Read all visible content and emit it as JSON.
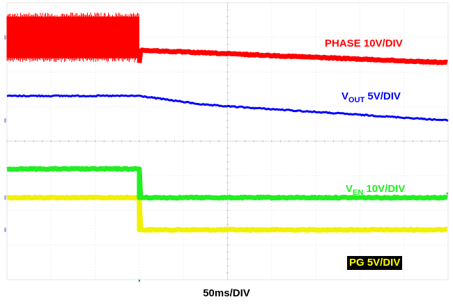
{
  "chart_data": {
    "type": "line",
    "title": "",
    "xlabel": "50ms/DIV",
    "ylabel": "",
    "grid": true,
    "divisions": {
      "x": 10,
      "y": 8
    },
    "event_time_div": 3.0,
    "series": [
      {
        "name": "PHASE",
        "label_main": "PHASE 10V/DIV",
        "color": "#ff0000",
        "kind": "switching",
        "burst_div": [
          0,
          3.0
        ],
        "burst_band_div": [
          0.4,
          1.6
        ],
        "x_div": [
          3.0,
          10
        ],
        "y_div": [
          1.37,
          1.73
        ]
      },
      {
        "name": "VOUT",
        "label_main": "V",
        "label_sub": "OUT",
        "label_tail": "5V/DIV",
        "color": "#0000ff",
        "kind": "line",
        "x_div": [
          0,
          3.0,
          4.5,
          10
        ],
        "y_div": [
          2.69,
          2.69,
          2.95,
          3.4
        ]
      },
      {
        "name": "VEN",
        "label_main": "V",
        "label_sub": "EN",
        "label_tail": "10V/DIV",
        "color": "#22ee22",
        "kind": "step",
        "x_div": [
          0,
          3.0,
          3.0,
          10
        ],
        "y_div": [
          4.8,
          4.8,
          5.63,
          5.63
        ]
      },
      {
        "name": "PG",
        "label_main": "PG 5V/DIV",
        "color": "#f0f000",
        "kind": "step",
        "x_div": [
          0,
          3.0,
          3.0,
          10
        ],
        "y_div": [
          5.63,
          5.63,
          6.56,
          6.56
        ]
      }
    ],
    "channel_marker_color": "#7777cc",
    "trigger_color": "#00aa00"
  }
}
